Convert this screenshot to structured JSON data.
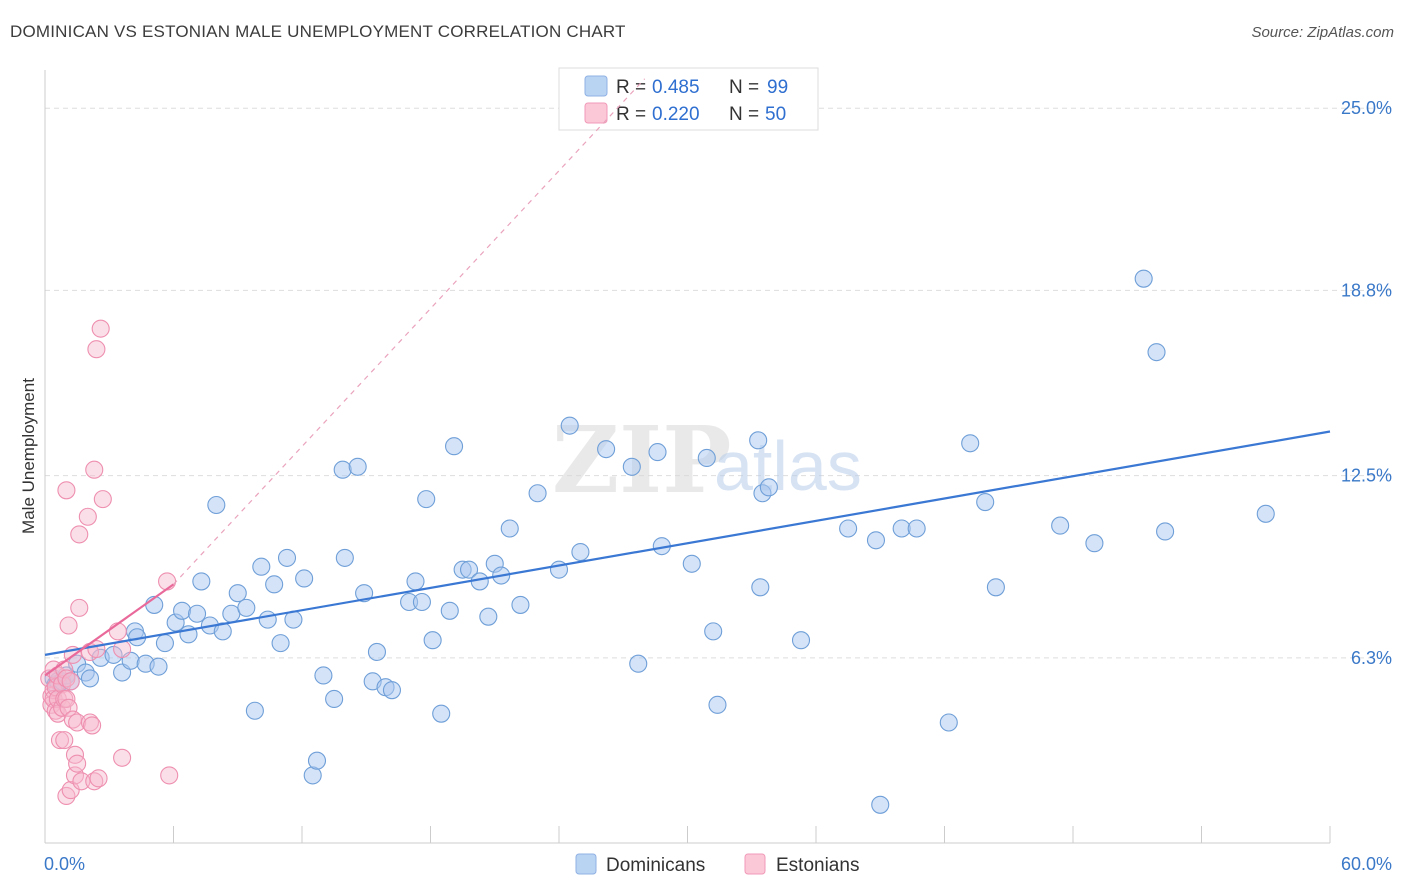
{
  "title": "DOMINICAN VS ESTONIAN MALE UNEMPLOYMENT CORRELATION CHART",
  "source": "Source: ZipAtlas.com",
  "watermark": {
    "zip": "ZIP",
    "atlas": "atlas"
  },
  "colors": {
    "blue": "#3a78d4",
    "blue_fill": "#a9c8ef",
    "pink": "#e96a9a",
    "pink_fill": "#f7b8cd",
    "tick": "#3a78c8",
    "grid": "#dddddd"
  },
  "legend": {
    "r_label": "R =",
    "n_label": "N =",
    "dominicans": {
      "r": "0.485",
      "n": "99"
    },
    "estonians": {
      "r": "0.220",
      "n": "50"
    }
  },
  "chart_data": {
    "type": "scatter",
    "title": "DOMINICAN VS ESTONIAN MALE UNEMPLOYMENT CORRELATION CHART",
    "xlabel": "",
    "ylabel": "Male Unemployment",
    "xlim": [
      0,
      60
    ],
    "ylim": [
      0,
      26.3
    ],
    "x_tick_labels": [
      "0.0%",
      "60.0%"
    ],
    "y_ticks": [
      6.3,
      12.5,
      18.8,
      25.0
    ],
    "y_tick_labels": [
      "6.3%",
      "12.5%",
      "18.8%",
      "25.0%"
    ],
    "series": [
      {
        "name": "Dominicans",
        "color": "#3a78d4",
        "trend": {
          "x0": 0,
          "y0": 6.4,
          "x1": 60,
          "y1": 14.0
        },
        "points": [
          [
            0.4,
            5.6
          ],
          [
            0.5,
            5.4
          ],
          [
            0.6,
            5.5
          ],
          [
            0.8,
            5.5
          ],
          [
            1.0,
            5.7
          ],
          [
            1.2,
            5.5
          ],
          [
            1.5,
            6.1
          ],
          [
            1.9,
            5.8
          ],
          [
            2.1,
            5.6
          ],
          [
            2.6,
            6.3
          ],
          [
            3.2,
            6.4
          ],
          [
            3.6,
            5.8
          ],
          [
            4.0,
            6.2
          ],
          [
            4.2,
            7.2
          ],
          [
            4.3,
            7.0
          ],
          [
            4.7,
            6.1
          ],
          [
            5.1,
            8.1
          ],
          [
            5.3,
            6.0
          ],
          [
            5.6,
            6.8
          ],
          [
            6.1,
            7.5
          ],
          [
            6.4,
            7.9
          ],
          [
            6.7,
            7.1
          ],
          [
            7.1,
            7.8
          ],
          [
            7.3,
            8.9
          ],
          [
            7.7,
            7.4
          ],
          [
            8.0,
            11.5
          ],
          [
            8.3,
            7.2
          ],
          [
            8.7,
            7.8
          ],
          [
            9.0,
            8.5
          ],
          [
            9.4,
            8.0
          ],
          [
            9.8,
            4.5
          ],
          [
            10.1,
            9.4
          ],
          [
            10.4,
            7.6
          ],
          [
            10.7,
            8.8
          ],
          [
            11.0,
            6.8
          ],
          [
            11.3,
            9.7
          ],
          [
            11.6,
            7.6
          ],
          [
            12.1,
            9.0
          ],
          [
            12.5,
            2.3
          ],
          [
            12.7,
            2.8
          ],
          [
            13.0,
            5.7
          ],
          [
            13.5,
            4.9
          ],
          [
            13.9,
            12.7
          ],
          [
            14.0,
            9.7
          ],
          [
            14.6,
            12.8
          ],
          [
            14.9,
            8.5
          ],
          [
            15.3,
            5.5
          ],
          [
            15.5,
            6.5
          ],
          [
            15.9,
            5.3
          ],
          [
            16.2,
            5.2
          ],
          [
            17.0,
            8.2
          ],
          [
            17.3,
            8.9
          ],
          [
            17.6,
            8.2
          ],
          [
            17.8,
            11.7
          ],
          [
            18.1,
            6.9
          ],
          [
            18.5,
            4.4
          ],
          [
            18.9,
            7.9
          ],
          [
            19.1,
            13.5
          ],
          [
            19.5,
            9.3
          ],
          [
            19.8,
            9.3
          ],
          [
            20.3,
            8.9
          ],
          [
            20.7,
            7.7
          ],
          [
            21.0,
            9.5
          ],
          [
            21.3,
            9.1
          ],
          [
            21.7,
            10.7
          ],
          [
            22.2,
            8.1
          ],
          [
            23.0,
            11.9
          ],
          [
            24.0,
            9.3
          ],
          [
            24.5,
            14.2
          ],
          [
            25.0,
            9.9
          ],
          [
            26.2,
            13.4
          ],
          [
            27.4,
            12.8
          ],
          [
            27.7,
            6.1
          ],
          [
            28.6,
            13.3
          ],
          [
            28.8,
            10.1
          ],
          [
            30.2,
            9.5
          ],
          [
            30.9,
            13.1
          ],
          [
            31.2,
            7.2
          ],
          [
            31.4,
            4.7
          ],
          [
            33.3,
            13.7
          ],
          [
            33.4,
            8.7
          ],
          [
            33.5,
            11.9
          ],
          [
            33.8,
            12.1
          ],
          [
            35.3,
            6.9
          ],
          [
            37.5,
            10.7
          ],
          [
            38.8,
            10.3
          ],
          [
            39.0,
            1.3
          ],
          [
            40.0,
            10.7
          ],
          [
            40.7,
            10.7
          ],
          [
            42.2,
            4.1
          ],
          [
            43.2,
            13.6
          ],
          [
            43.9,
            11.6
          ],
          [
            44.4,
            8.7
          ],
          [
            47.4,
            10.8
          ],
          [
            49.0,
            10.2
          ],
          [
            51.3,
            19.2
          ],
          [
            51.9,
            16.7
          ],
          [
            52.3,
            10.6
          ],
          [
            57.0,
            11.2
          ]
        ]
      },
      {
        "name": "Estonians",
        "color": "#e96a9a",
        "trend": {
          "x0": 0,
          "y0": 5.7,
          "x1": 6.0,
          "y1": 8.8
        },
        "trend_dashed": {
          "x0": 6.0,
          "y0": 8.8,
          "x1": 28.0,
          "y1": 26.0
        },
        "points": [
          [
            0.2,
            5.6
          ],
          [
            0.3,
            5.0
          ],
          [
            0.3,
            4.7
          ],
          [
            0.4,
            5.2
          ],
          [
            0.4,
            5.9
          ],
          [
            0.4,
            4.9
          ],
          [
            0.5,
            4.5
          ],
          [
            0.5,
            5.3
          ],
          [
            0.6,
            4.9
          ],
          [
            0.6,
            5.7
          ],
          [
            0.6,
            4.4
          ],
          [
            0.7,
            3.5
          ],
          [
            0.8,
            4.6
          ],
          [
            0.8,
            5.4
          ],
          [
            0.9,
            3.5
          ],
          [
            0.9,
            4.9
          ],
          [
            0.9,
            5.9
          ],
          [
            1.0,
            1.6
          ],
          [
            1.0,
            12.0
          ],
          [
            1.0,
            4.9
          ],
          [
            1.0,
            5.6
          ],
          [
            1.1,
            7.4
          ],
          [
            1.1,
            4.6
          ],
          [
            1.2,
            5.5
          ],
          [
            1.2,
            1.8
          ],
          [
            1.3,
            6.4
          ],
          [
            1.3,
            4.2
          ],
          [
            1.4,
            2.3
          ],
          [
            1.4,
            3.0
          ],
          [
            1.5,
            2.7
          ],
          [
            1.5,
            4.1
          ],
          [
            1.6,
            8.0
          ],
          [
            1.6,
            10.5
          ],
          [
            1.7,
            2.1
          ],
          [
            2.0,
            11.1
          ],
          [
            2.1,
            4.1
          ],
          [
            2.1,
            6.5
          ],
          [
            2.2,
            4.0
          ],
          [
            2.3,
            2.1
          ],
          [
            2.3,
            12.7
          ],
          [
            2.4,
            16.8
          ],
          [
            2.4,
            6.6
          ],
          [
            2.5,
            2.2
          ],
          [
            2.6,
            17.5
          ],
          [
            2.7,
            11.7
          ],
          [
            3.4,
            7.2
          ],
          [
            3.6,
            6.6
          ],
          [
            3.6,
            2.9
          ],
          [
            5.7,
            8.9
          ],
          [
            5.8,
            2.3
          ]
        ]
      }
    ]
  },
  "bottom_legend": {
    "dominicans": "Dominicans",
    "estonians": "Estonians"
  }
}
